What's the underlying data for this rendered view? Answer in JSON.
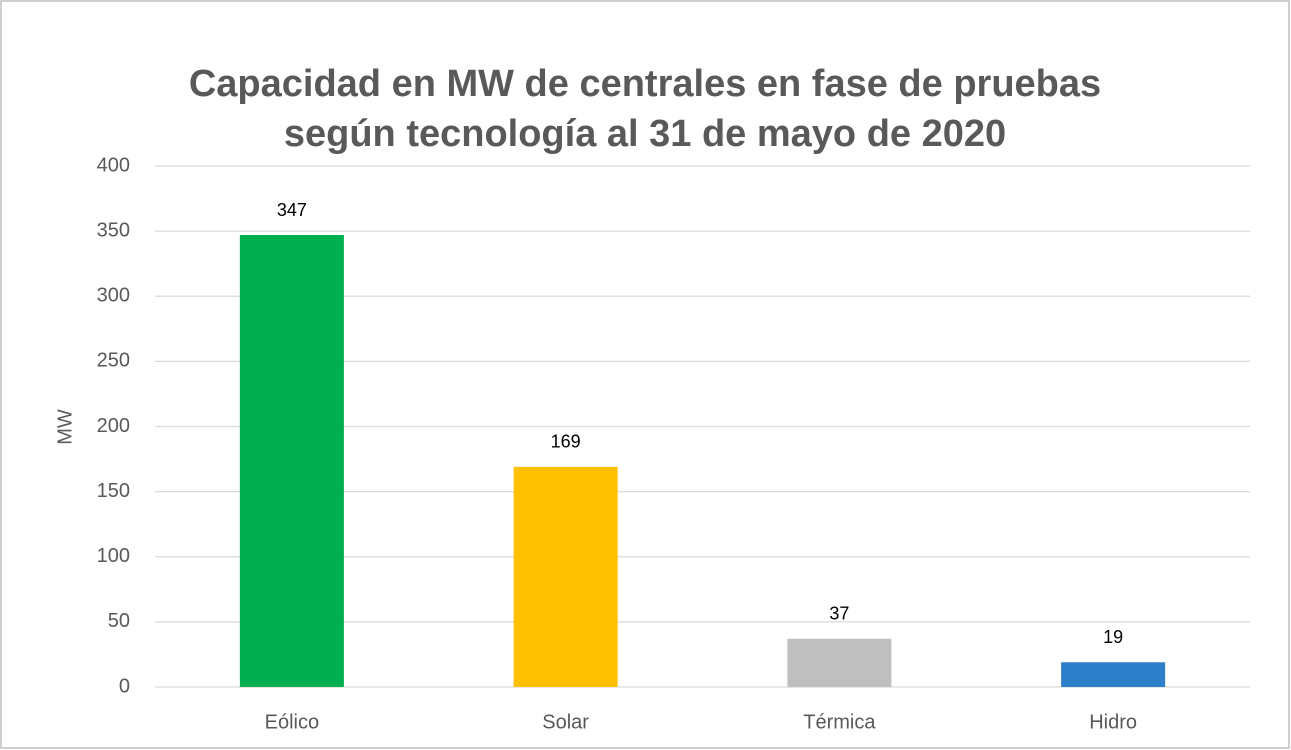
{
  "chart_data": {
    "type": "bar",
    "title": [
      "Capacidad en MW de centrales en fase de pruebas",
      "según tecnología al 31 de mayo de 2020"
    ],
    "ylabel": "MW",
    "categories": [
      "Eólico",
      "Solar",
      "Térmica",
      "Hidro"
    ],
    "values": [
      347,
      169,
      37,
      19
    ],
    "colors": [
      "#00b050",
      "#ffc000",
      "#bfbfbf",
      "#2e7fc9"
    ],
    "ylim": [
      0,
      400
    ],
    "yticks": [
      0,
      50,
      100,
      150,
      200,
      250,
      300,
      350,
      400
    ],
    "grid": true
  }
}
